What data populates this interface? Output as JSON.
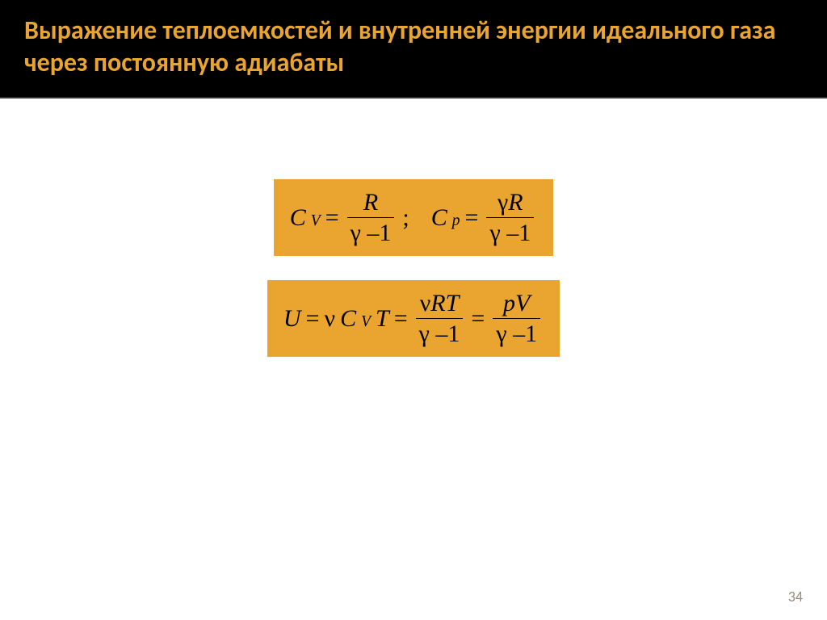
{
  "slide": {
    "title": "Выражение теплоемкостей и внутренней энергии идеального газа через постоянную адиабаты",
    "page_number": "34"
  },
  "formulas": {
    "box1": {
      "background": "#e9a52f",
      "cv_lhs_C": "C",
      "cv_lhs_sub": "V",
      "eq": "=",
      "cv_num": "R",
      "cv_den_gamma": "γ",
      "cv_den_minus": "–",
      "cv_den_one": "1",
      "sep": ";",
      "cp_lhs_C": "C",
      "cp_lhs_sub": "p",
      "cp_num_gamma": "γ",
      "cp_num_R": "R",
      "cp_den_gamma": "γ",
      "cp_den_minus": "–",
      "cp_den_one": "1"
    },
    "box2": {
      "background": "#e9a52f",
      "U": "U",
      "eq1": "=",
      "nu1": "ν",
      "C": "C",
      "C_sub": "V",
      "T": "T",
      "eq2": "=",
      "f1_num_nu": "ν",
      "f1_num_R": "R",
      "f1_num_T": "T",
      "f1_den_gamma": "γ",
      "f1_den_minus": "–",
      "f1_den_one": "1",
      "eq3": "=",
      "f2_num_p": "p",
      "f2_num_V": "V",
      "f2_den_gamma": "γ",
      "f2_den_minus": "–",
      "f2_den_one": "1"
    }
  },
  "style": {
    "title_color": "#e9a52f",
    "header_bg": "#000000",
    "formula_bg": "#e9a52f",
    "formula_text": "#000000",
    "title_fontsize": 32,
    "formula_fontsize": 30,
    "page_bg": "#ffffff"
  }
}
